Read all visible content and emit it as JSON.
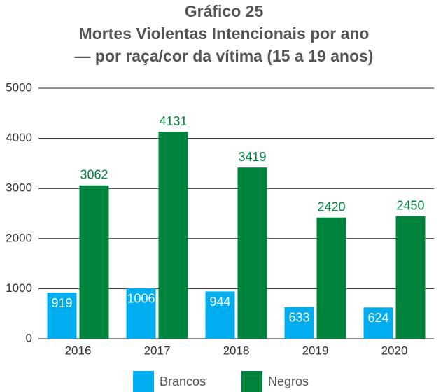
{
  "chart_data": {
    "type": "bar",
    "title": "Gráfico 25",
    "subtitle": [
      "Mortes Violentas Intencionais por ano",
      "— por raça/cor da vítima (15 a 19 anos)"
    ],
    "categories": [
      "2016",
      "2017",
      "2018",
      "2019",
      "2020"
    ],
    "series": [
      {
        "name": "Brancos",
        "color": "#00aeef",
        "values": [
          919,
          1006,
          944,
          633,
          624
        ]
      },
      {
        "name": "Negros",
        "color": "#00843d",
        "values": [
          3062,
          4131,
          3419,
          2420,
          2450
        ]
      }
    ],
    "ylim": [
      0,
      5000
    ],
    "yticks": [
      0,
      1000,
      2000,
      3000,
      4000,
      5000
    ],
    "grid": true,
    "legend": "bottom"
  }
}
